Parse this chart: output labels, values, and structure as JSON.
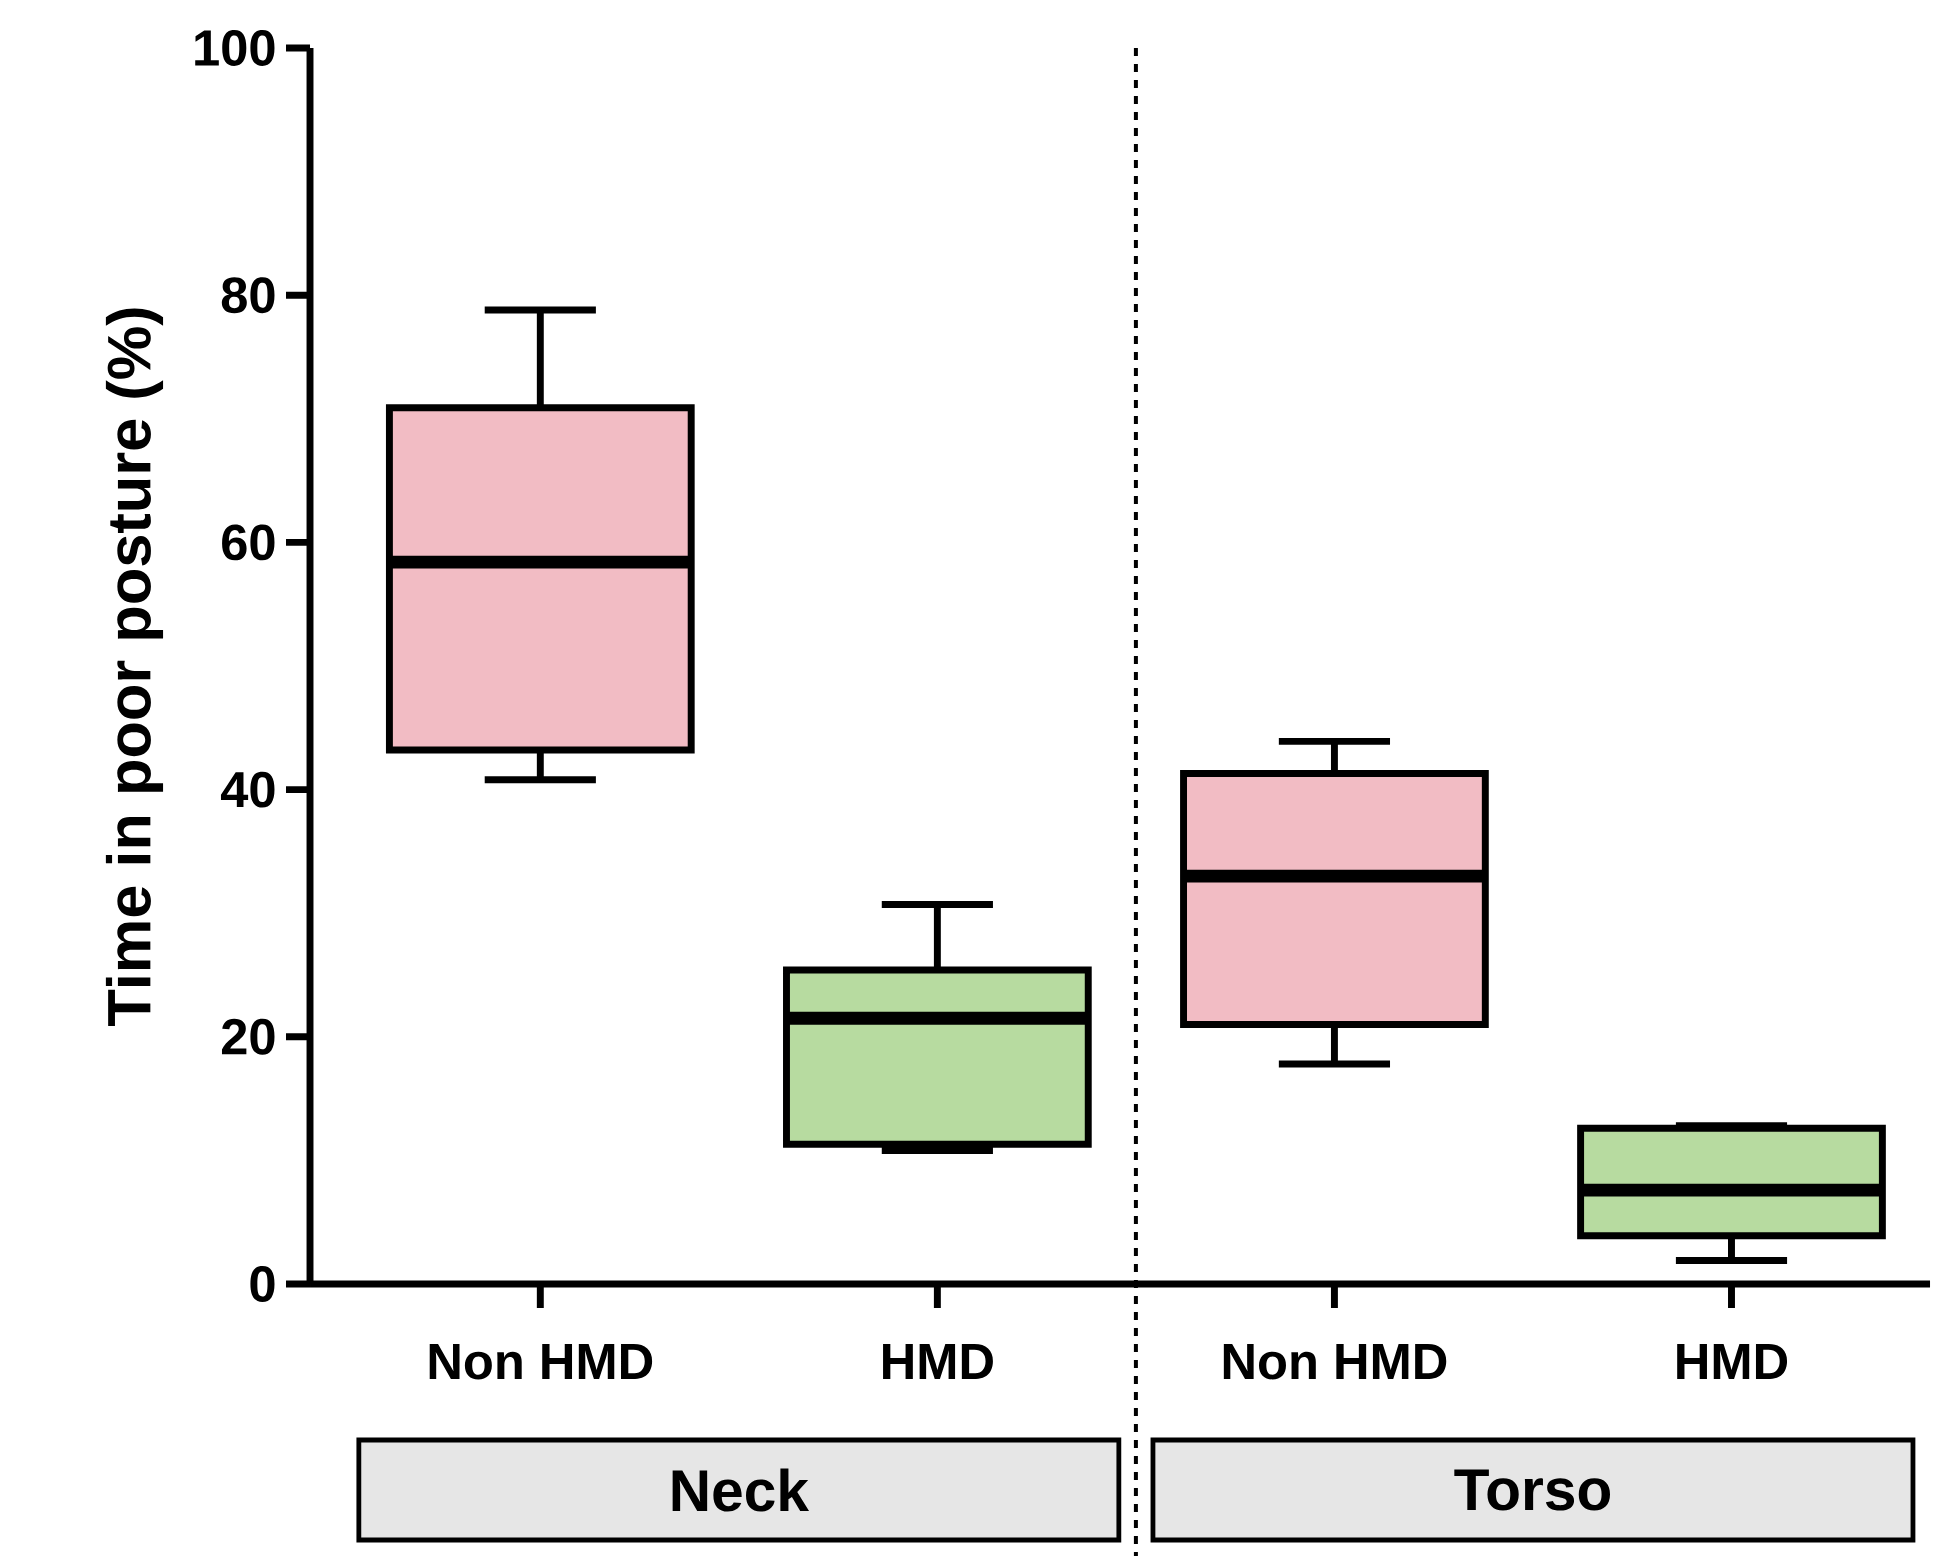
{
  "chart_data": {
    "type": "box",
    "ylabel": "Time in poor posture (%)",
    "categories": [
      "Non HMD",
      "HMD",
      "Non HMD",
      "HMD"
    ],
    "boxes": [
      {
        "low": 40.8,
        "q1": 43.2,
        "median": 58.4,
        "q3": 70.9,
        "high": 78.8
      },
      {
        "low": 10.8,
        "q1": 11.3,
        "median": 21.5,
        "q3": 25.4,
        "high": 30.7
      },
      {
        "low": 17.8,
        "q1": 21.0,
        "median": 33.0,
        "q3": 41.3,
        "high": 43.9
      },
      {
        "low": 1.9,
        "q1": 3.9,
        "median": 7.6,
        "q3": 12.6,
        "high": 12.8
      }
    ],
    "colors": [
      "#f2bcc4",
      "#b7dba0",
      "#f2bcc4",
      "#b7dba0"
    ],
    "ylim": [
      0,
      100
    ],
    "yticks": [
      0,
      20,
      40,
      60,
      80,
      100
    ],
    "annotations": [
      "Neck",
      "Torso"
    ]
  }
}
